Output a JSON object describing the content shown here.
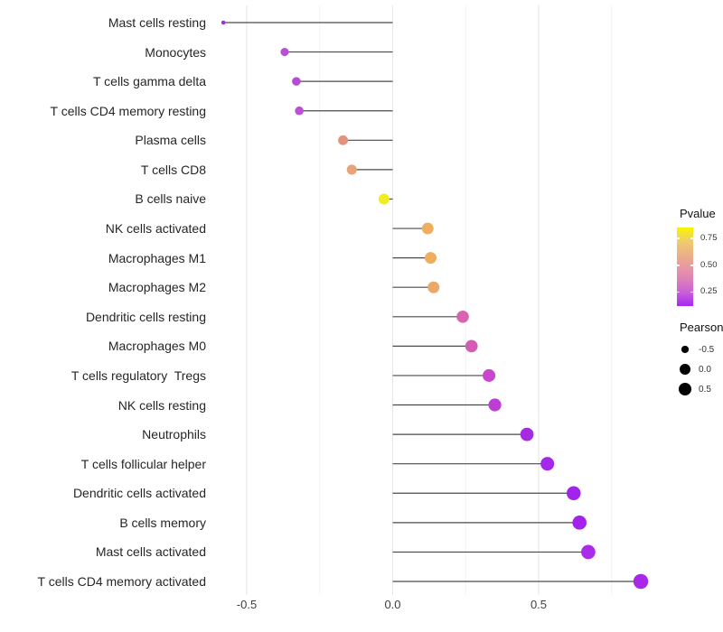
{
  "chart_data": {
    "type": "scatter",
    "variant": "lollipop",
    "orientation": "horizontal",
    "title": "",
    "xlabel": "",
    "ylabel": "",
    "x_ticks": [
      -0.5,
      0.0,
      0.5
    ],
    "x_tick_labels": [
      "-0.5",
      "0.0",
      "0.5"
    ],
    "x_minor_ticks": [
      -0.25,
      0.25,
      0.75
    ],
    "xlim": [
      -0.66,
      0.92
    ],
    "grid": "vertical major and minor, light gray, no panel border",
    "baseline": 0,
    "legend_position": "right",
    "categories": [
      "Mast cells resting",
      "Monocytes",
      "T cells gamma delta",
      "T cells CD4 memory resting",
      "Plasma cells",
      "T cells CD8",
      "B cells naive",
      "NK cells activated",
      "Macrophages M1",
      "Macrophages M2",
      "Dendritic cells resting",
      "Macrophages M0",
      "T cells regulatory  Tregs",
      "NK cells resting",
      "Neutrophils",
      "T cells follicular helper",
      "Dendritic cells activated",
      "B cells memory",
      "Mast cells activated",
      "T cells CD4 memory activated"
    ],
    "series": [
      {
        "name": "Pearson",
        "values": [
          -0.58,
          -0.37,
          -0.33,
          -0.32,
          -0.17,
          -0.14,
          -0.03,
          0.12,
          0.13,
          0.14,
          0.24,
          0.27,
          0.33,
          0.35,
          0.46,
          0.53,
          0.62,
          0.64,
          0.67,
          0.85
        ]
      },
      {
        "name": "Pvalue (estimated from dot color)",
        "values": [
          0.05,
          0.2,
          0.2,
          0.2,
          0.58,
          0.62,
          0.85,
          0.66,
          0.66,
          0.64,
          0.38,
          0.35,
          0.28,
          0.22,
          0.1,
          0.08,
          0.06,
          0.06,
          0.05,
          0.03
        ]
      }
    ],
    "point_colors": [
      "#9633D2",
      "#B84FD4",
      "#B64CD2",
      "#BB4FD6",
      "#E2937D",
      "#E8A379",
      "#F0EE1E",
      "#EFAE5E",
      "#EFAE5E",
      "#EBA866",
      "#D964AE",
      "#D45CB4",
      "#C748CA",
      "#BC3FD4",
      "#A62BE0",
      "#A428EA",
      "#A322EC",
      "#A322EC",
      "#AB2BEB",
      "#A928E8"
    ],
    "stem_color": "#4a4a4a",
    "gridline_major_color": "#e6e6e6",
    "gridline_minor_color": "#f4f4f4"
  },
  "legends": {
    "pvalue": {
      "title": "Pvalue",
      "tick_labels": [
        "0.75",
        "0.50",
        "0.25"
      ],
      "gradient_top_to_bottom": [
        "#F9F400",
        "#F0CE69",
        "#ECB285",
        "#E898A2",
        "#DD7FBA",
        "#C95ED8",
        "#A428F5"
      ]
    },
    "pearson": {
      "title": "Pearson",
      "entries": [
        {
          "label": "-0.5",
          "size": -0.5
        },
        {
          "label": "0.0",
          "size": 0.0
        },
        {
          "label": "0.5",
          "size": 0.5
        }
      ],
      "dot_color": "#000000"
    }
  }
}
